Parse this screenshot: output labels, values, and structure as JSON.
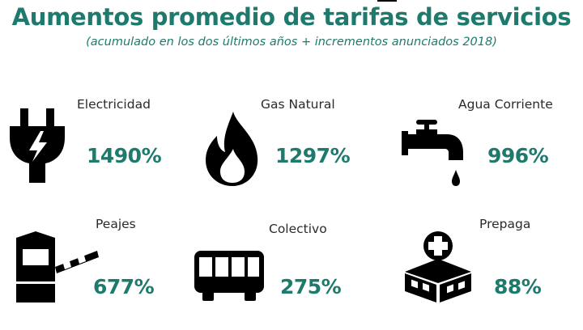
{
  "header": {
    "title": "Aumentos promedio de tarifas de servicios",
    "subtitle": "(acumulado en los dos últimos años + incrementos anunciados 2018)"
  },
  "colors": {
    "accent": "#1e7a6d",
    "icon": "#000000",
    "label": "#2a2a2a"
  },
  "chart_data": {
    "type": "table",
    "title": "Aumentos promedio de tarifas de servicios",
    "subtitle": "(acumulado en los dos últimos años + incrementos anunciados 2018)",
    "categories": [
      "Electricidad",
      "Gas Natural",
      "Agua Corriente",
      "Peajes",
      "Colectivo",
      "Prepaga"
    ],
    "values": [
      1490,
      1297,
      996,
      677,
      275,
      88
    ],
    "unit": "%"
  },
  "items": [
    {
      "label": "Electricidad",
      "value": "1490%",
      "icon": "plug-icon"
    },
    {
      "label": "Gas Natural",
      "value": "1297%",
      "icon": "flame-icon"
    },
    {
      "label": "Agua Corriente",
      "value": "996%",
      "icon": "faucet-icon"
    },
    {
      "label": "Peajes",
      "value": "677%",
      "icon": "toll-booth-icon"
    },
    {
      "label": "Colectivo",
      "value": "275%",
      "icon": "bus-icon"
    },
    {
      "label": "Prepaga",
      "value": "88%",
      "icon": "medical-building-icon"
    }
  ]
}
